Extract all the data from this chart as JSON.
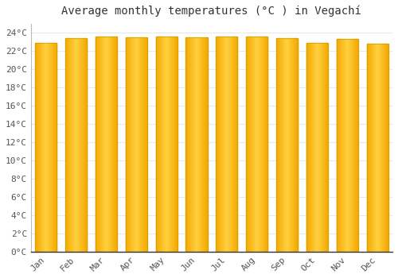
{
  "title": "Average monthly temperatures (°C ) in Vegachí",
  "months": [
    "Jan",
    "Feb",
    "Mar",
    "Apr",
    "May",
    "Jun",
    "Jul",
    "Aug",
    "Sep",
    "Oct",
    "Nov",
    "Dec"
  ],
  "values": [
    22.9,
    23.4,
    23.6,
    23.5,
    23.6,
    23.5,
    23.6,
    23.6,
    23.4,
    22.9,
    23.3,
    22.8
  ],
  "bar_color_dark": "#F5A800",
  "bar_color_light": "#FFD040",
  "background_color": "#FFFFFF",
  "grid_color": "#E8E8F0",
  "ylim": [
    0,
    25
  ],
  "yticks": [
    0,
    2,
    4,
    6,
    8,
    10,
    12,
    14,
    16,
    18,
    20,
    22,
    24
  ],
  "title_fontsize": 10,
  "tick_fontsize": 8,
  "bar_width": 0.72
}
